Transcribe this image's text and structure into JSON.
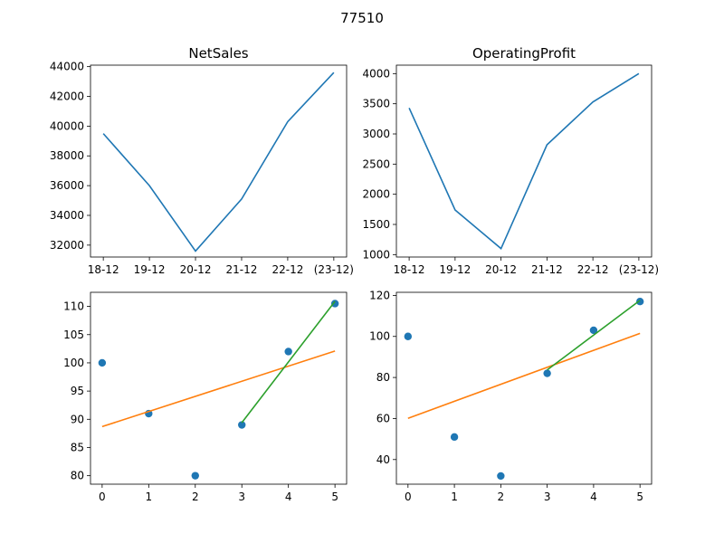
{
  "figure": {
    "suptitle": "77510"
  },
  "colors": {
    "line": "#1f77b4",
    "points": "#1f77b4",
    "fit_all": "#ff7f0e",
    "fit_recent": "#2ca02c"
  },
  "chart_data": [
    {
      "type": "line",
      "title": "NetSales",
      "categories": [
        "18-12",
        "19-12",
        "20-12",
        "21-12",
        "22-12",
        "(23-12)"
      ],
      "values": [
        39500,
        36000,
        31600,
        35100,
        40300,
        43600
      ],
      "ylim": [
        31200,
        44100
      ],
      "yticks": [
        32000,
        34000,
        36000,
        38000,
        40000,
        42000,
        44000
      ],
      "grid": false
    },
    {
      "type": "line",
      "title": "OperatingProfit",
      "categories": [
        "18-12",
        "19-12",
        "20-12",
        "21-12",
        "22-12",
        "(23-12)"
      ],
      "values": [
        3430,
        1740,
        1100,
        2820,
        3530,
        4000
      ],
      "ylim": [
        960,
        4140
      ],
      "yticks": [
        1000,
        1500,
        2000,
        2500,
        3000,
        3500,
        4000
      ],
      "grid": false
    },
    {
      "type": "scatter",
      "x": [
        0,
        1,
        2,
        3,
        4,
        5
      ],
      "y": [
        100,
        91,
        80,
        89,
        102,
        110.5
      ],
      "fit_all": {
        "x": [
          0,
          5
        ],
        "y": [
          88.7,
          102.1
        ]
      },
      "fit_recent": {
        "x": [
          3,
          5
        ],
        "y": [
          89.4,
          110.9
        ]
      },
      "xlim": [
        -0.25,
        5.25
      ],
      "ylim": [
        78.5,
        112.5
      ],
      "xticks": [
        0,
        1,
        2,
        3,
        4,
        5
      ],
      "yticks": [
        80,
        85,
        90,
        95,
        100,
        105,
        110
      ],
      "grid": false
    },
    {
      "type": "scatter",
      "x": [
        0,
        1,
        2,
        3,
        4,
        5
      ],
      "y": [
        100,
        51,
        32,
        82,
        103,
        117
      ],
      "fit_all": {
        "x": [
          0,
          5
        ],
        "y": [
          60.1,
          101.5
        ]
      },
      "fit_recent": {
        "x": [
          3,
          5
        ],
        "y": [
          83.7,
          117.6
        ]
      },
      "xlim": [
        -0.25,
        5.25
      ],
      "ylim": [
        28,
        121.5
      ],
      "xticks": [
        0,
        1,
        2,
        3,
        4,
        5
      ],
      "yticks": [
        40,
        60,
        80,
        100,
        120
      ],
      "grid": false
    }
  ]
}
